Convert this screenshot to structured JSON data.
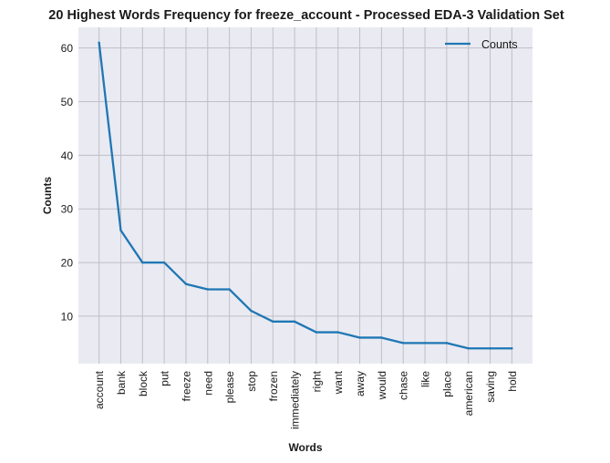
{
  "chart_data": {
    "type": "line",
    "title": "20 Highest Words Frequency for freeze_account - Processed EDA-3 Validation Set",
    "xlabel": "Words",
    "ylabel": "Counts",
    "categories": [
      "account",
      "bank",
      "block",
      "put",
      "freeze",
      "need",
      "please",
      "stop",
      "frozen",
      "immediately",
      "right",
      "want",
      "away",
      "would",
      "chase",
      "like",
      "place",
      "american",
      "saving",
      "hold"
    ],
    "series": [
      {
        "name": "Counts",
        "values": [
          61,
          26,
          20,
          20,
          16,
          15,
          15,
          11,
          9,
          9,
          7,
          7,
          6,
          6,
          5,
          5,
          5,
          4,
          4,
          4
        ],
        "color": "#1f77b4"
      }
    ],
    "yticks": [
      10,
      20,
      30,
      40,
      50,
      60
    ],
    "ylim": [
      1.15,
      63.85
    ],
    "grid": true,
    "legend": "top-right",
    "background": "#eaeaf2",
    "gridColor": "#bfbfc6"
  }
}
